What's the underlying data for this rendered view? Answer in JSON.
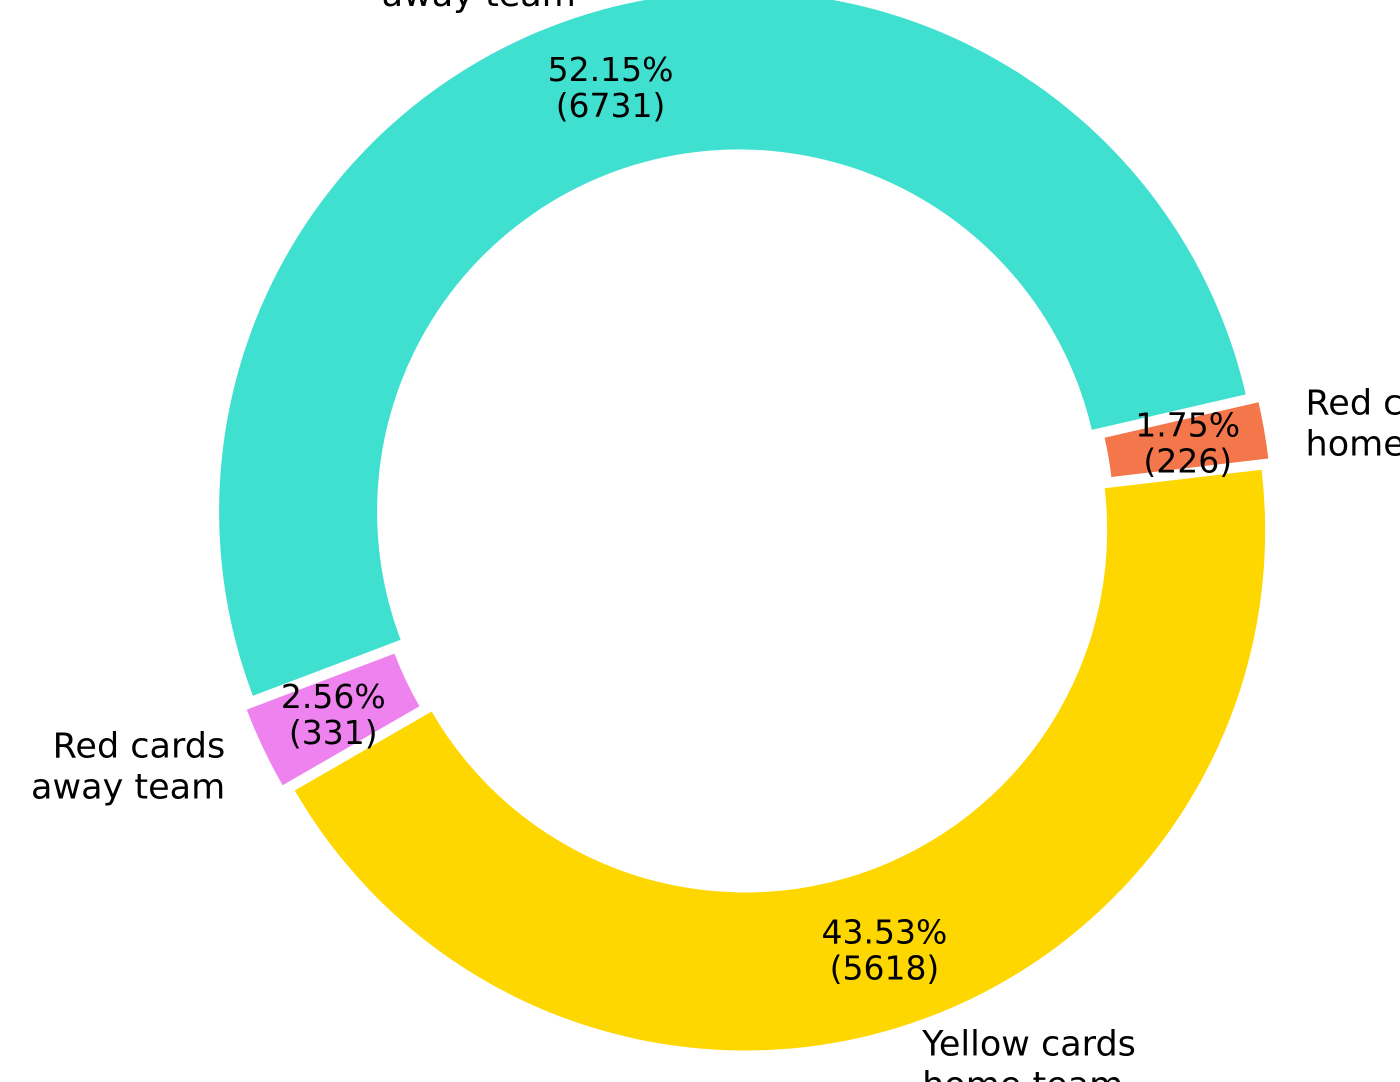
{
  "chart_data": {
    "type": "pie",
    "style": "donut",
    "categories": [
      "Yellow cards\nhome team",
      "Red cards\nhome team",
      "Yellow cards\naway team",
      "Red cards\naway team"
    ],
    "values": [
      5618,
      226,
      6731,
      331
    ],
    "percent_labels": [
      "43.53%",
      "1.75%",
      "52.15%",
      "2.56%"
    ],
    "count_labels": [
      "(5618)",
      "(226)",
      "(6731)",
      "(331)"
    ],
    "colors": [
      "#FFD700",
      "#F4764B",
      "#40E0D0",
      "#EE82EE"
    ],
    "title": "",
    "legend": "none"
  }
}
